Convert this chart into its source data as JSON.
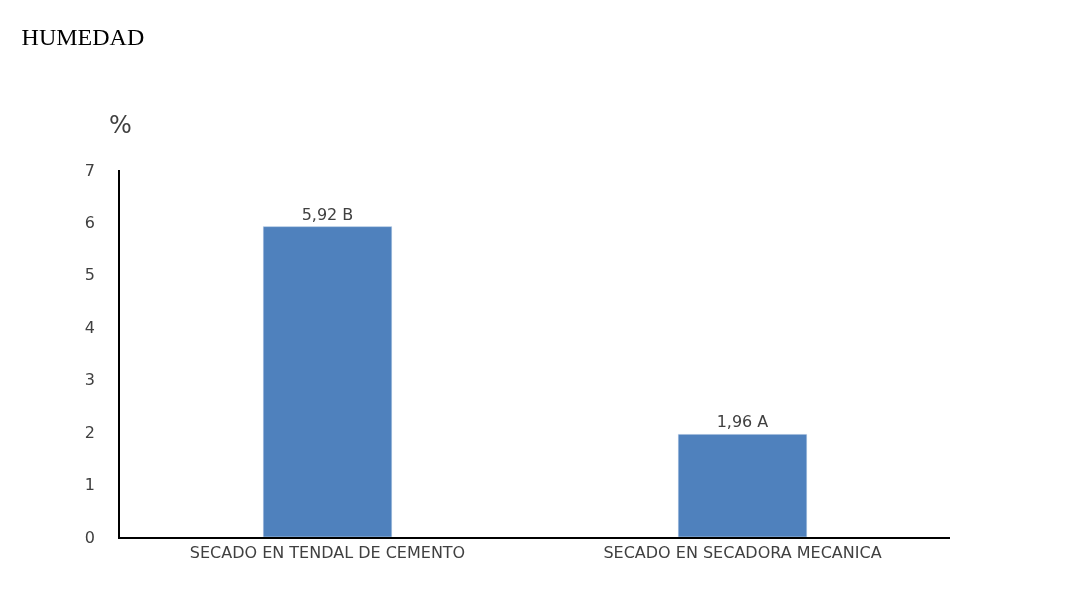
{
  "chart_data": {
    "type": "bar",
    "title": "HUMEDAD",
    "ylabel": "%",
    "categories": [
      "SECADO EN TENDAL DE CEMENTO",
      "SECADO EN SECADORA MECANICA"
    ],
    "values": [
      5.92,
      1.96
    ],
    "value_labels": [
      "5,92 B",
      "1,96 A"
    ],
    "color": "#4f81bd",
    "ylim": [
      0,
      7
    ],
    "yticks": [
      0,
      1,
      2,
      3,
      4,
      5,
      6,
      7
    ],
    "grid": false,
    "legend": false
  }
}
